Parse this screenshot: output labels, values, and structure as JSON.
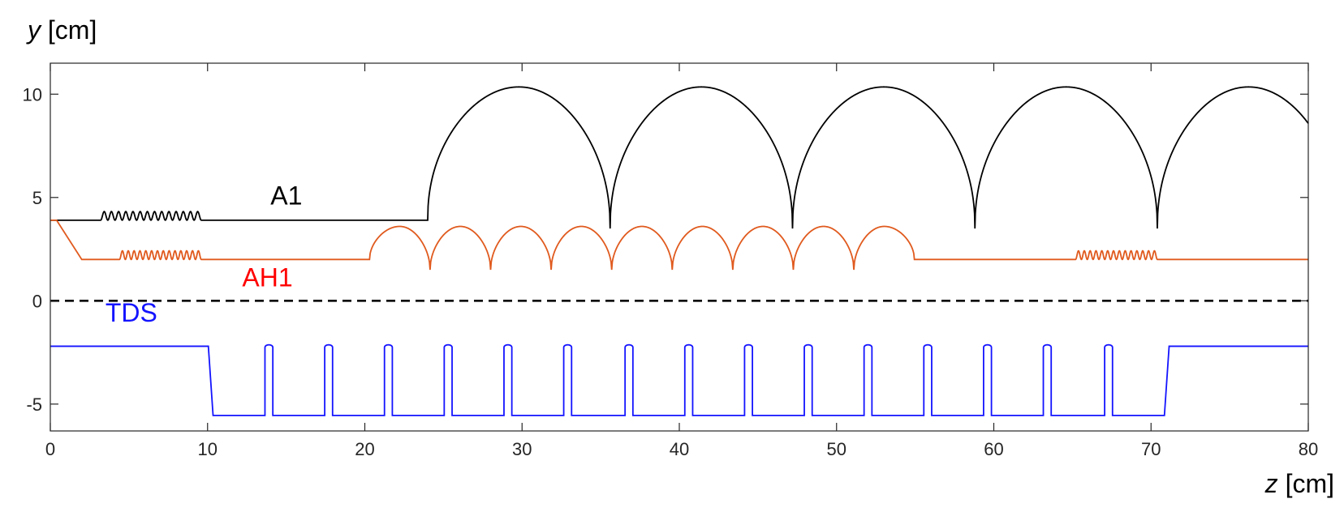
{
  "chart_data": {
    "type": "line",
    "xlabel": {
      "var": "z",
      "unit": " [cm]"
    },
    "ylabel": {
      "var": "y",
      "unit": " [cm]"
    },
    "xlim": [
      0,
      80
    ],
    "ylim": [
      -6.3,
      11.5
    ],
    "xticks": [
      0,
      10,
      20,
      30,
      40,
      50,
      60,
      70,
      80
    ],
    "yticks": [
      -5,
      0,
      5,
      10
    ],
    "grid": false,
    "colors": {
      "A1": "#000000",
      "AH1": "#e05a1e",
      "AH1_label": "#ff0000",
      "TDS": "#1414ff",
      "axis": "#262626",
      "zero_line": "#000000"
    },
    "series": [
      {
        "name": "A1",
        "label_position": [
          14,
          4.65
        ],
        "base": 3.9,
        "small_corrugations": {
          "z_start": 3.2,
          "z_end": 9.6,
          "count": 14,
          "amplitude": 0.42
        },
        "cells": {
          "z_start": 24.0,
          "z_end": 80.0,
          "period": 11.6,
          "peak": 10.35,
          "trough": 3.5
        }
      },
      {
        "name": "AH1",
        "label_position": [
          12.2,
          0.7
        ],
        "start_y": 3.9,
        "taper_end": [
          2.0,
          2.0
        ],
        "base": 2.0,
        "small_corrugations_1": {
          "z_start": 4.4,
          "z_end": 9.6,
          "count": 14,
          "amplitude": 0.42
        },
        "cells": {
          "z_start": 20.3,
          "z_end": 54.5,
          "count": 9,
          "period": 3.85,
          "peak": 3.6,
          "trough": 1.5
        },
        "small_corrugations_2": {
          "z_start": 65.2,
          "z_end": 70.4,
          "count": 14,
          "amplitude": 0.42
        }
      },
      {
        "name": "TDS",
        "label_position": [
          3.5,
          -1.0
        ],
        "high": -2.2,
        "low": -5.55,
        "step_down": 10.2,
        "step_up": 71.0,
        "fins": [
          13.9,
          17.7,
          21.5,
          25.3,
          29.1,
          32.9,
          36.8,
          40.6,
          44.4,
          48.2,
          52.0,
          55.8,
          59.6,
          63.4,
          67.3
        ],
        "fin_width": 0.5
      },
      {
        "name": "",
        "style": "dashed",
        "y": 0
      }
    ]
  }
}
